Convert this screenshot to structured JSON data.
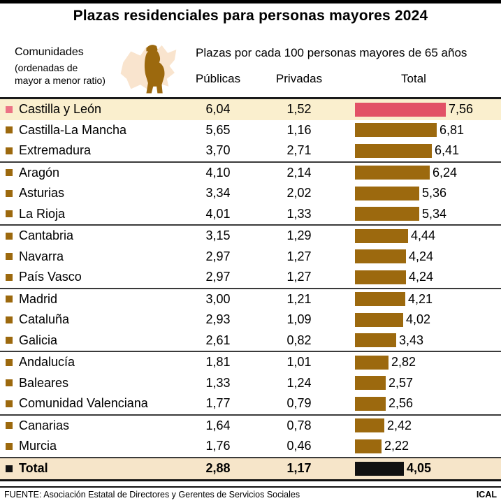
{
  "title": "Plazas residenciales para personas mayores 2024",
  "header": {
    "left_title": "Comunidades",
    "left_subtitle_line1": "(ordenadas de",
    "left_subtitle_line2": "mayor a menor ratio)",
    "group_title": "Plazas por cada 100 personas mayores de 65 años",
    "col_publicas": "Públicas",
    "col_privadas": "Privadas",
    "col_total": "Total",
    "icon": "elderly-person-on-region-map-icon"
  },
  "colors": {
    "brown": "#9C690E",
    "pink_bar": "#E25266",
    "pink_bullet": "#EC7385",
    "highlight_row_bg": "#FAEFCE",
    "total_row_bg": "#F6E5C9",
    "map_bg": "#F9E4CE",
    "black_bar": "#111111"
  },
  "rows": [
    {
      "name": "Castilla y León",
      "publicas": "6,04",
      "privadas": "1,52",
      "total": "7,56",
      "highlight": true
    },
    {
      "name": "Castilla-La Mancha",
      "publicas": "5,65",
      "privadas": "1,16",
      "total": "6,81"
    },
    {
      "name": "Extremadura",
      "publicas": "3,70",
      "privadas": "2,71",
      "total": "6,41",
      "group_end": true
    },
    {
      "name": "Aragón",
      "publicas": "4,10",
      "privadas": "2,14",
      "total": "6,24"
    },
    {
      "name": "Asturias",
      "publicas": "3,34",
      "privadas": "2,02",
      "total": "5,36"
    },
    {
      "name": "La Rioja",
      "publicas": "4,01",
      "privadas": "1,33",
      "total": "5,34",
      "group_end": true
    },
    {
      "name": "Cantabria",
      "publicas": "3,15",
      "privadas": "1,29",
      "total": "4,44"
    },
    {
      "name": "Navarra",
      "publicas": "2,97",
      "privadas": "1,27",
      "total": "4,24"
    },
    {
      "name": "País Vasco",
      "publicas": "2,97",
      "privadas": "1,27",
      "total": "4,24",
      "group_end": true
    },
    {
      "name": "Madrid",
      "publicas": "3,00",
      "privadas": "1,21",
      "total": "4,21"
    },
    {
      "name": "Cataluña",
      "publicas": "2,93",
      "privadas": "1,09",
      "total": "4,02"
    },
    {
      "name": "Galicia",
      "publicas": "2,61",
      "privadas": "0,82",
      "total": "3,43",
      "group_end": true
    },
    {
      "name": "Andalucía",
      "publicas": "1,81",
      "privadas": "1,01",
      "total": "2,82"
    },
    {
      "name": "Baleares",
      "publicas": "1,33",
      "privadas": "1,24",
      "total": "2,57"
    },
    {
      "name": "Comunidad Valenciana",
      "publicas": "1,77",
      "privadas": "0,79",
      "total": "2,56",
      "group_end": true
    },
    {
      "name": "Canarias",
      "publicas": "1,64",
      "privadas": "0,78",
      "total": "2,42"
    },
    {
      "name": "Murcia",
      "publicas": "1,76",
      "privadas": "0,46",
      "total": "2,22",
      "group_end": true
    }
  ],
  "total_row": {
    "name": "Total",
    "publicas": "2,88",
    "privadas": "1,17",
    "total": "4,05"
  },
  "footer": {
    "source": "FUENTE: Asociación Estatal de Directores y Gerentes de Servicios Sociales",
    "credit": "ICAL"
  },
  "chart_data": {
    "type": "bar",
    "title": "Plazas residenciales para personas mayores 2024",
    "subtitle": "Plazas por cada 100 personas mayores de 65 años",
    "categories": [
      "Castilla y León",
      "Castilla-La Mancha",
      "Extremadura",
      "Aragón",
      "Asturias",
      "La Rioja",
      "Cantabria",
      "Navarra",
      "País Vasco",
      "Madrid",
      "Cataluña",
      "Galicia",
      "Andalucía",
      "Baleares",
      "Comunidad Valenciana",
      "Canarias",
      "Murcia"
    ],
    "series": [
      {
        "name": "Públicas",
        "values": [
          6.04,
          5.65,
          3.7,
          4.1,
          3.34,
          4.01,
          3.15,
          2.97,
          2.97,
          3.0,
          2.93,
          2.61,
          1.81,
          1.33,
          1.77,
          1.64,
          1.76
        ]
      },
      {
        "name": "Privadas",
        "values": [
          1.52,
          1.16,
          2.71,
          2.14,
          2.02,
          1.33,
          1.29,
          1.27,
          1.27,
          1.21,
          1.09,
          0.82,
          1.01,
          1.24,
          0.79,
          0.78,
          0.46
        ]
      },
      {
        "name": "Total",
        "values": [
          7.56,
          6.81,
          6.41,
          6.24,
          5.36,
          5.34,
          4.44,
          4.24,
          4.24,
          4.21,
          4.02,
          3.43,
          2.82,
          2.57,
          2.56,
          2.42,
          2.22
        ]
      }
    ],
    "overall_total": {
      "Públicas": 2.88,
      "Privadas": 1.17,
      "Total": 4.05
    },
    "bar_axis_max": 7.56,
    "orientation": "horizontal",
    "grid": false,
    "legend_position": "none",
    "notes": "Only the Total series is drawn as bars; Públicas and Privadas shown as numeric columns. Castilla y León highlighted in pink; Total summary bar in black."
  }
}
